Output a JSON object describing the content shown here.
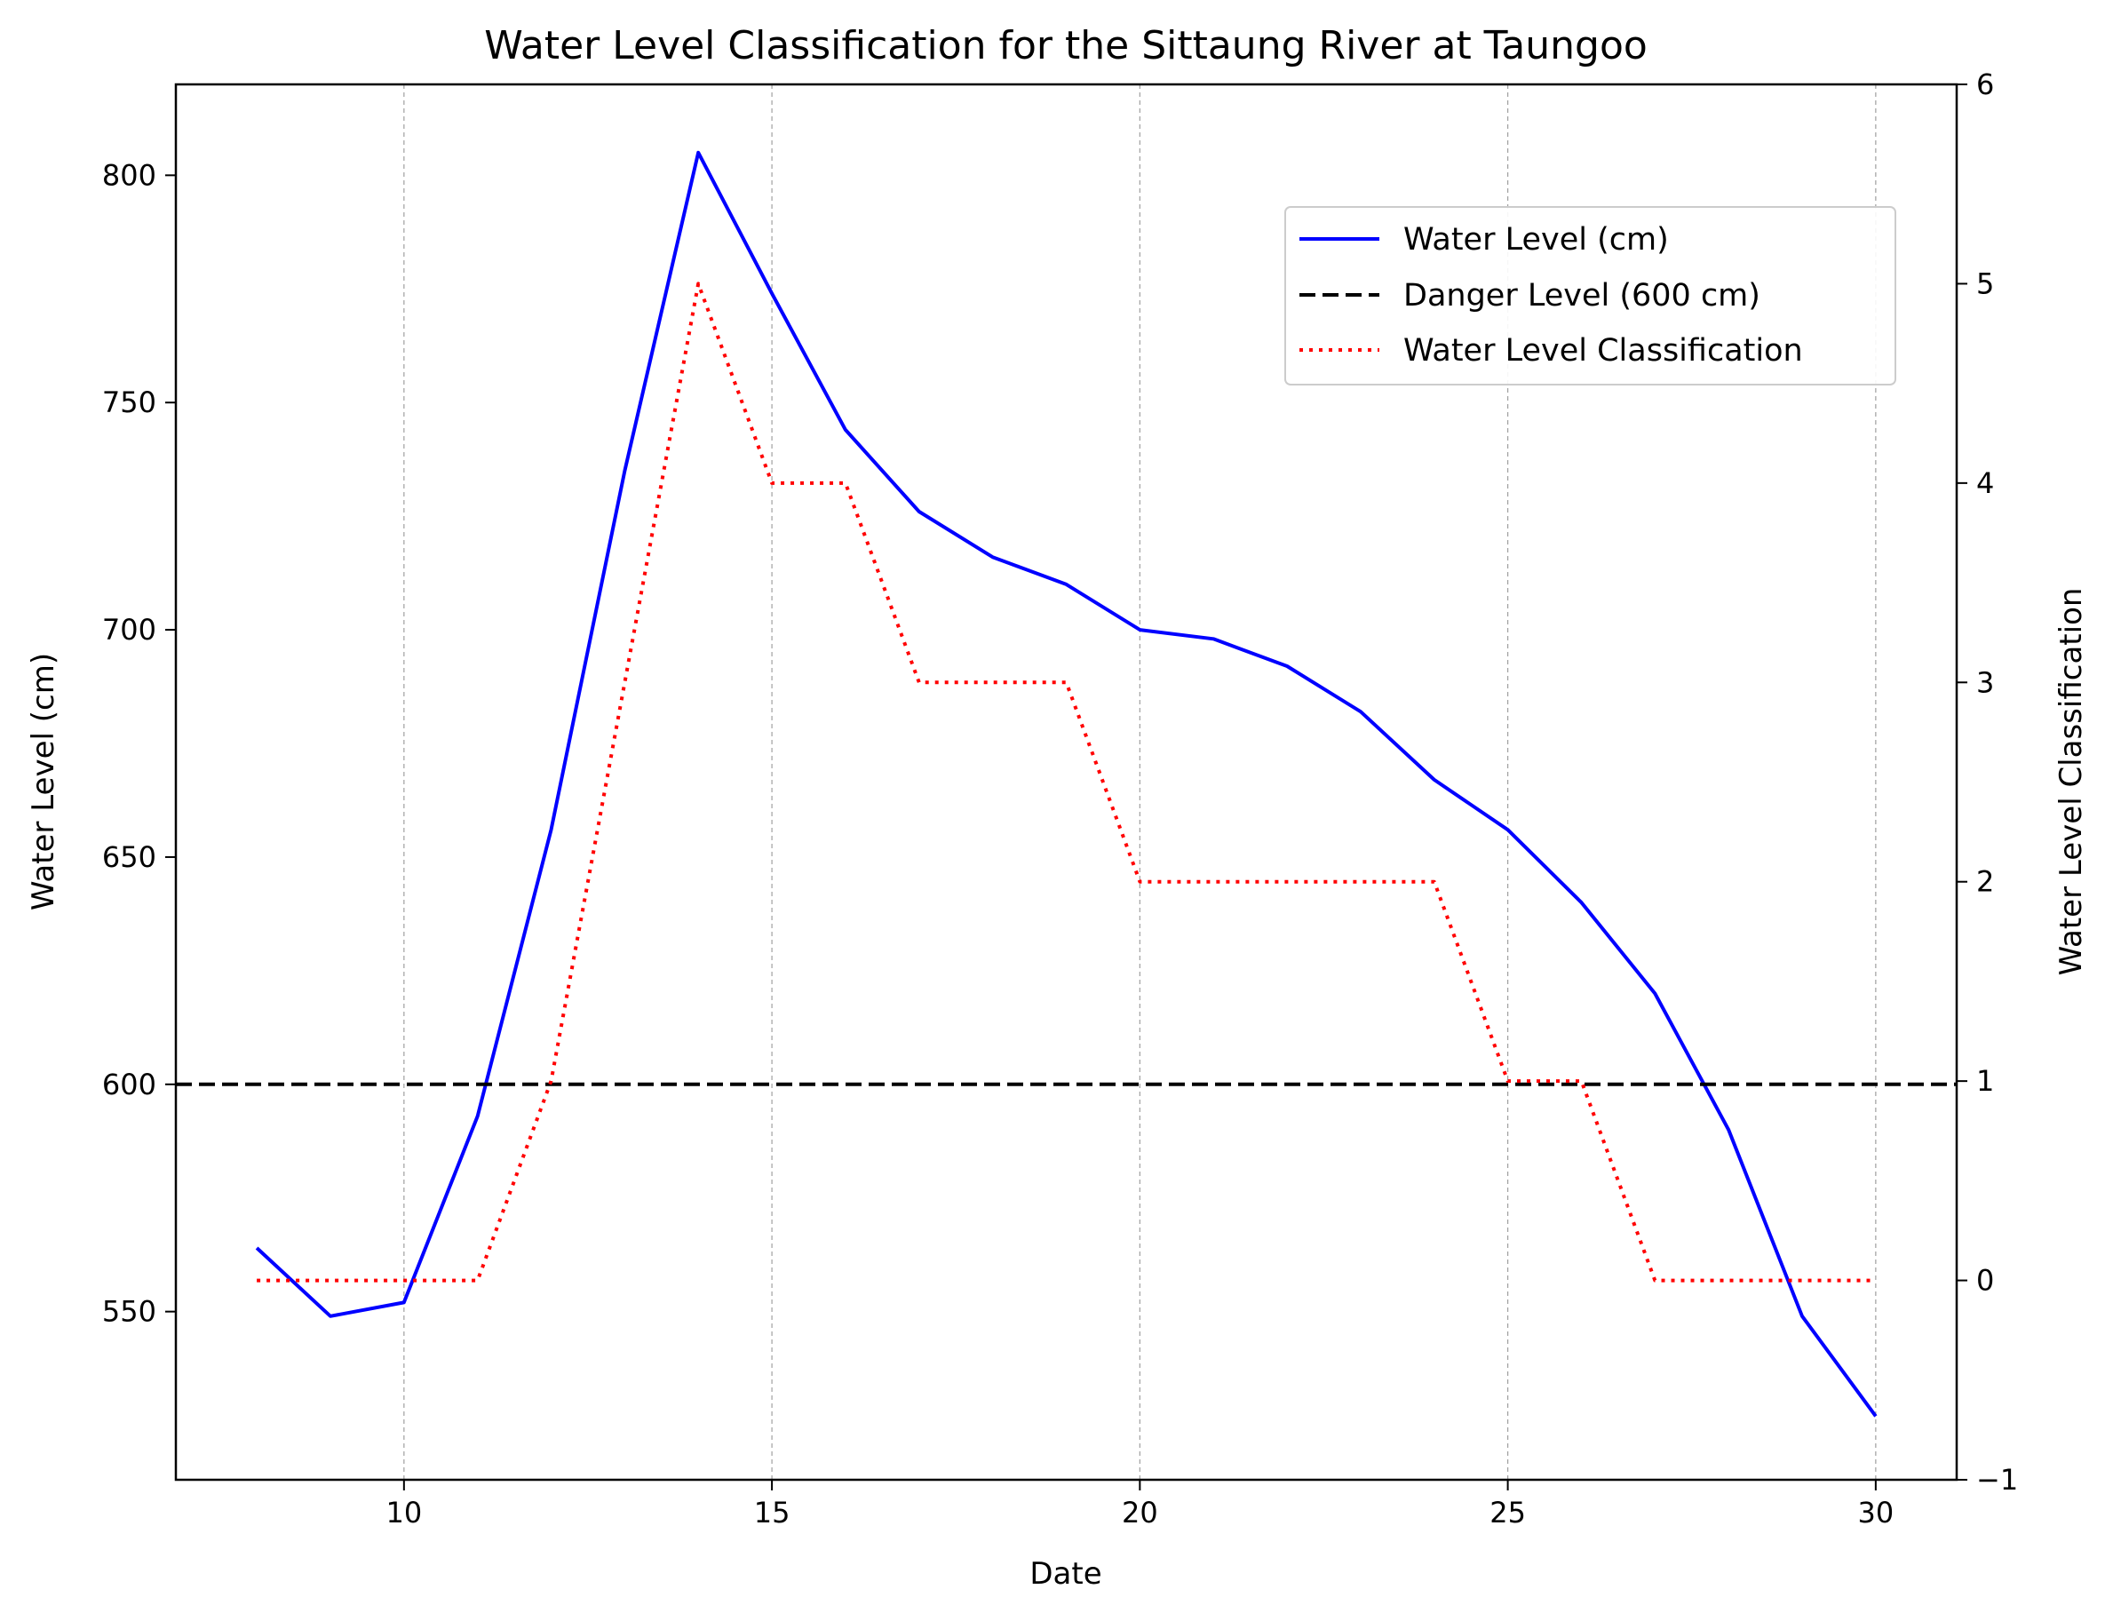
{
  "chart_data": {
    "type": "line",
    "title": "Water Level Classification for the Sittaung River at Taungoo",
    "xlabel": "Date",
    "ylabel": "Water Level (cm)",
    "y2label": "Water Level Classification",
    "xlim": [
      6.9,
      31.1
    ],
    "ylim": [
      513,
      820
    ],
    "y2lim": [
      -1,
      6
    ],
    "xticks": [
      10,
      15,
      20,
      25,
      30
    ],
    "yticks": [
      550,
      600,
      650,
      700,
      750,
      800
    ],
    "y2ticks": [
      -1,
      0,
      1,
      2,
      3,
      4,
      5,
      6
    ],
    "grid": "x-axis only, dashed gray",
    "legend_position": "upper-right",
    "x": [
      8,
      9,
      10,
      11,
      12,
      13,
      14,
      15,
      16,
      17,
      18,
      19,
      20,
      21,
      22,
      23,
      24,
      25,
      26,
      27,
      28,
      29,
      30
    ],
    "series": [
      {
        "name": "Water Level (cm)",
        "axis": "left",
        "color": "#0000ff",
        "style": "solid",
        "values": [
          564,
          549,
          552,
          593,
          656,
          735,
          805,
          774,
          744,
          726,
          716,
          710,
          700,
          698,
          692,
          682,
          667,
          656,
          640,
          620,
          590,
          549,
          527
        ]
      },
      {
        "name": "Danger Level (600 cm)",
        "axis": "left",
        "color": "#000000",
        "style": "dashed",
        "constant": 600
      },
      {
        "name": "Water Level Classification",
        "axis": "right",
        "color": "#ff0000",
        "style": "dotted",
        "values": [
          0,
          0,
          0,
          0,
          1,
          3,
          5,
          4,
          4,
          3,
          3,
          3,
          2,
          2,
          2,
          2,
          2,
          1,
          1,
          0,
          0,
          0,
          0
        ]
      }
    ]
  }
}
